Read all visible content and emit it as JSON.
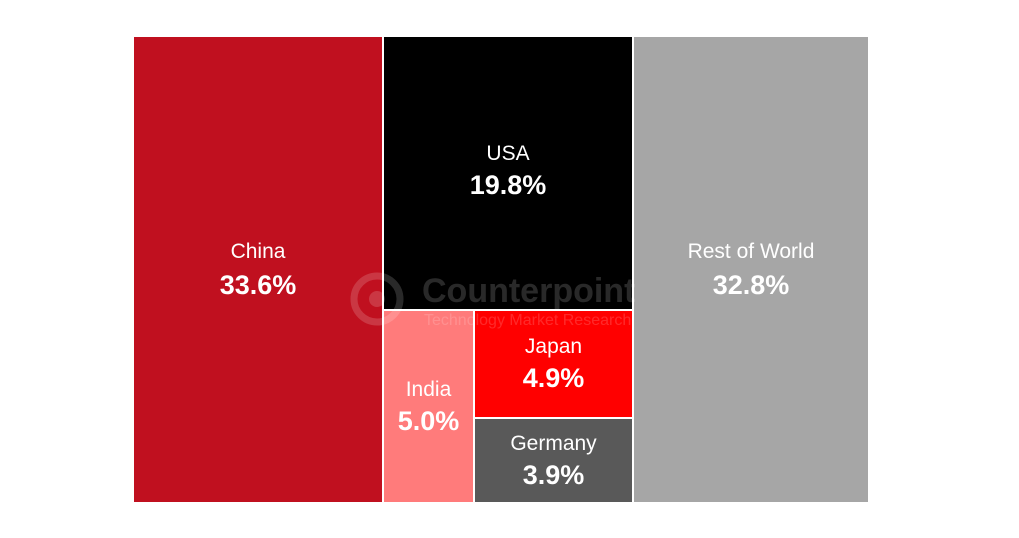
{
  "chart_data": {
    "type": "treemap",
    "title": "",
    "unit": "%",
    "items": [
      {
        "name": "China",
        "value": 33.6,
        "label": "33.6%",
        "color": "#c0101f"
      },
      {
        "name": "USA",
        "value": 19.8,
        "label": "19.8%",
        "color": "#000000"
      },
      {
        "name": "India",
        "value": 5.0,
        "label": "5.0%",
        "color": "#ff7b7b"
      },
      {
        "name": "Japan",
        "value": 4.9,
        "label": "4.9%",
        "color": "#ff0000"
      },
      {
        "name": "Germany",
        "value": 3.9,
        "label": "3.9%",
        "color": "#595959"
      },
      {
        "name": "Rest of World",
        "value": 32.8,
        "label": "32.8%",
        "color": "#a6a6a6"
      }
    ]
  },
  "watermark": {
    "name": "Counterpoint",
    "tagline": "Technology Market Research"
  }
}
